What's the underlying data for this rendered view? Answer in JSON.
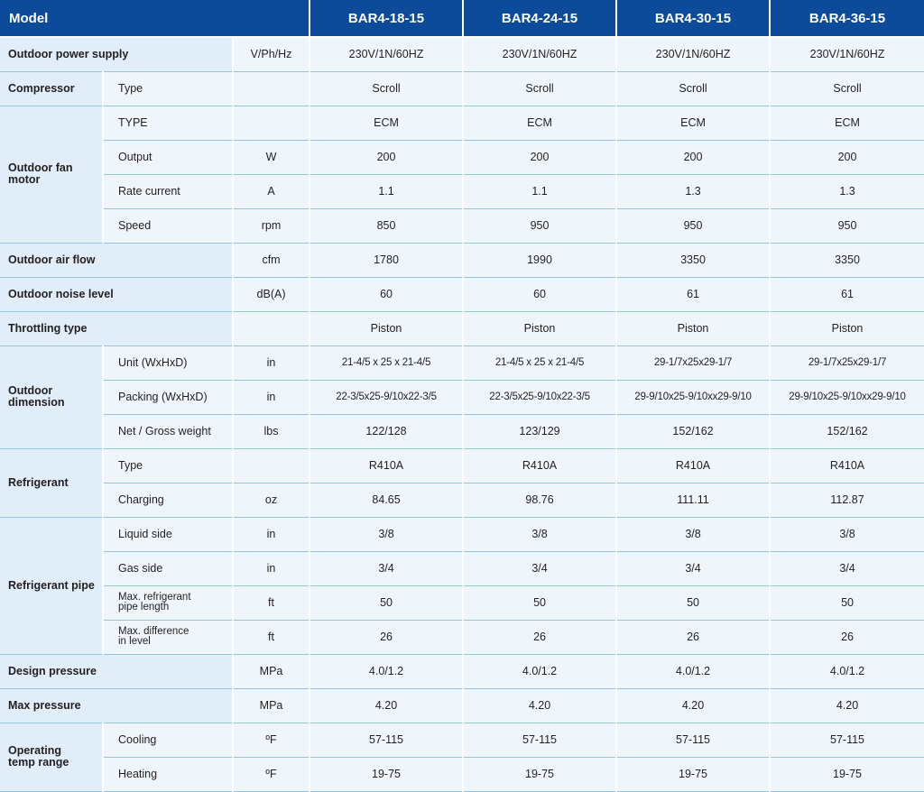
{
  "table": {
    "header": {
      "label": "Model",
      "models": [
        "BAR4-18-15",
        "BAR4-24-15",
        "BAR4-30-15",
        "BAR4-36-15"
      ]
    },
    "rows": {
      "power_supply": {
        "group": "Outdoor power supply",
        "unit": "V/Ph/Hz",
        "values": [
          "230V/1N/60HZ",
          "230V/1N/60HZ",
          "230V/1N/60HZ",
          "230V/1N/60HZ"
        ]
      },
      "compressor_type": {
        "group": "Compressor",
        "param": "Type",
        "unit": "",
        "values": [
          "Scroll",
          "Scroll",
          "Scroll",
          "Scroll"
        ]
      },
      "fan_type": {
        "group": "Outdoor fan motor",
        "param": "TYPE",
        "unit": "",
        "values": [
          "ECM",
          "ECM",
          "ECM",
          "ECM"
        ]
      },
      "fan_output": {
        "param": "Output",
        "unit": "W",
        "values": [
          "200",
          "200",
          "200",
          "200"
        ]
      },
      "fan_current": {
        "param": "Rate current",
        "unit": "A",
        "values": [
          "1.1",
          "1.1",
          "1.3",
          "1.3"
        ]
      },
      "fan_speed": {
        "param": "Speed",
        "unit": "rpm",
        "values": [
          "850",
          "950",
          "950",
          "950"
        ]
      },
      "air_flow": {
        "group": "Outdoor air flow",
        "unit": "cfm",
        "values": [
          "1780",
          "1990",
          "3350",
          "3350"
        ]
      },
      "noise": {
        "group": "Outdoor noise level",
        "unit": "dB(A)",
        "values": [
          "60",
          "60",
          "61",
          "61"
        ]
      },
      "throttling": {
        "group": "Throttling type",
        "unit": "",
        "values": [
          "Piston",
          "Piston",
          "Piston",
          "Piston"
        ]
      },
      "dim_unit": {
        "group": "Outdoor dimension",
        "param": "Unit (WxHxD)",
        "unit": "in",
        "values": [
          "21-4/5 x 25 x 21-4/5",
          "21-4/5 x 25 x 21-4/5",
          "29-1/7x25x29-1/7",
          "29-1/7x25x29-1/7"
        ]
      },
      "dim_packing": {
        "param": "Packing (WxHxD)",
        "unit": "in",
        "values": [
          "22-3/5x25-9/10x22-3/5",
          "22-3/5x25-9/10x22-3/5",
          "29-9/10x25-9/10xx29-9/10",
          "29-9/10x25-9/10xx29-9/10"
        ]
      },
      "weight": {
        "param": "Net / Gross weight",
        "unit": "lbs",
        "values": [
          "122/128",
          "123/129",
          "152/162",
          "152/162"
        ]
      },
      "refrigerant_type": {
        "group": "Refrigerant",
        "param": "Type",
        "unit": "",
        "values": [
          "R410A",
          "R410A",
          "R410A",
          "R410A"
        ]
      },
      "refrigerant_charge": {
        "param": "Charging",
        "unit": "oz",
        "values": [
          "84.65",
          "98.76",
          "111.11",
          "112.87"
        ]
      },
      "pipe_liquid": {
        "group": "Refrigerant pipe",
        "param": "Liquid side",
        "unit": "in",
        "values": [
          "3/8",
          "3/8",
          "3/8",
          "3/8"
        ]
      },
      "pipe_gas": {
        "param": "Gas side",
        "unit": "in",
        "values": [
          "3/4",
          "3/4",
          "3/4",
          "3/4"
        ]
      },
      "pipe_length": {
        "param": "Max. refrigerant pipe length",
        "unit": "ft",
        "values": [
          "50",
          "50",
          "50",
          "50"
        ]
      },
      "pipe_level": {
        "param": "Max. difference in level",
        "unit": "ft",
        "values": [
          "26",
          "26",
          "26",
          "26"
        ]
      },
      "design_pressure": {
        "group": "Design pressure",
        "unit": "MPa",
        "values": [
          "4.0/1.2",
          "4.0/1.2",
          "4.0/1.2",
          "4.0/1.2"
        ]
      },
      "max_pressure": {
        "group": "Max pressure",
        "unit": "MPa",
        "values": [
          "4.20",
          "4.20",
          "4.20",
          "4.20"
        ]
      },
      "temp_cooling": {
        "group": "Operating temp range",
        "param": "Cooling",
        "unit": "ºF",
        "values": [
          "57-115",
          "57-115",
          "57-115",
          "57-115"
        ]
      },
      "temp_heating": {
        "param": "Heating",
        "unit": "ºF",
        "values": [
          "19-75",
          "19-75",
          "19-75",
          "19-75"
        ]
      }
    }
  }
}
